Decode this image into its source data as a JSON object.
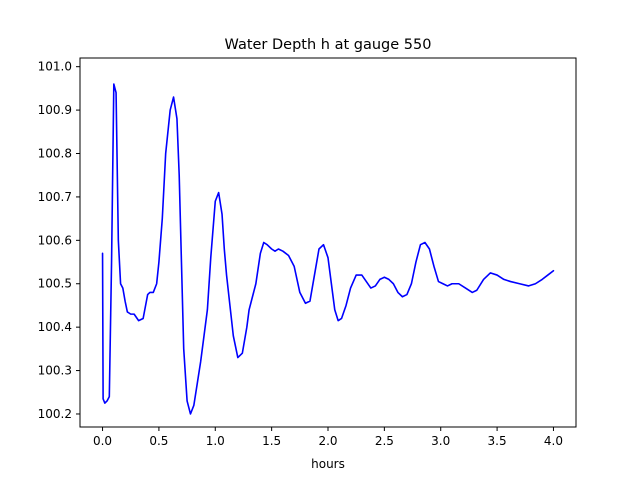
{
  "chart_data": {
    "type": "line",
    "title": "Water Depth h at gauge 550",
    "xlabel": "hours",
    "ylabel": "",
    "xlim": [
      -0.2,
      4.2
    ],
    "ylim": [
      100.17,
      101.02
    ],
    "xticks": [
      {
        "value": 0.0,
        "label": "0.0"
      },
      {
        "value": 0.5,
        "label": "0.5"
      },
      {
        "value": 1.0,
        "label": "1.0"
      },
      {
        "value": 1.5,
        "label": "1.5"
      },
      {
        "value": 2.0,
        "label": "2.0"
      },
      {
        "value": 2.5,
        "label": "2.5"
      },
      {
        "value": 3.0,
        "label": "3.0"
      },
      {
        "value": 3.5,
        "label": "3.5"
      },
      {
        "value": 4.0,
        "label": "4.0"
      }
    ],
    "yticks": [
      {
        "value": 100.2,
        "label": "100.2"
      },
      {
        "value": 100.3,
        "label": "100.3"
      },
      {
        "value": 100.4,
        "label": "100.4"
      },
      {
        "value": 100.5,
        "label": "100.5"
      },
      {
        "value": 100.6,
        "label": "100.6"
      },
      {
        "value": 100.7,
        "label": "100.7"
      },
      {
        "value": 100.8,
        "label": "100.8"
      },
      {
        "value": 100.9,
        "label": "100.9"
      },
      {
        "value": 101.0,
        "label": "101.0"
      }
    ],
    "grid": false,
    "line_color": "#0000ff",
    "series": [
      {
        "x": [
          0.0,
          0.005,
          0.02,
          0.04,
          0.06,
          0.08,
          0.1,
          0.12,
          0.14,
          0.16,
          0.18,
          0.2,
          0.22,
          0.25,
          0.28,
          0.32,
          0.36,
          0.4,
          0.42,
          0.45,
          0.48,
          0.5,
          0.53,
          0.56,
          0.6,
          0.63,
          0.66,
          0.68,
          0.7,
          0.72,
          0.75,
          0.78,
          0.81,
          0.84,
          0.87,
          0.9,
          0.93,
          0.96,
          1.0,
          1.03,
          1.06,
          1.08,
          1.1,
          1.13,
          1.16,
          1.2,
          1.24,
          1.28,
          1.3,
          1.33,
          1.36,
          1.4,
          1.43,
          1.46,
          1.5,
          1.53,
          1.56,
          1.6,
          1.65,
          1.7,
          1.75,
          1.8,
          1.84,
          1.88,
          1.92,
          1.96,
          2.0,
          2.03,
          2.06,
          2.09,
          2.12,
          2.16,
          2.2,
          2.25,
          2.3,
          2.34,
          2.38,
          2.42,
          2.46,
          2.5,
          2.54,
          2.58,
          2.62,
          2.66,
          2.7,
          2.74,
          2.78,
          2.82,
          2.86,
          2.9,
          2.94,
          2.98,
          3.02,
          3.06,
          3.1,
          3.16,
          3.22,
          3.28,
          3.32,
          3.38,
          3.44,
          3.5,
          3.56,
          3.62,
          3.7,
          3.78,
          3.84,
          3.9,
          3.95,
          4.0
        ],
        "y": [
          100.57,
          100.235,
          100.225,
          100.23,
          100.24,
          100.55,
          100.96,
          100.94,
          100.6,
          100.5,
          100.49,
          100.46,
          100.435,
          100.43,
          100.43,
          100.415,
          100.42,
          100.475,
          100.48,
          100.48,
          100.5,
          100.55,
          100.65,
          100.8,
          100.9,
          100.93,
          100.88,
          100.75,
          100.55,
          100.35,
          100.23,
          100.2,
          100.22,
          100.27,
          100.32,
          100.38,
          100.44,
          100.56,
          100.69,
          100.71,
          100.66,
          100.58,
          100.52,
          100.45,
          100.38,
          100.33,
          100.34,
          100.4,
          100.44,
          100.47,
          100.5,
          100.57,
          100.595,
          100.59,
          100.58,
          100.575,
          100.58,
          100.575,
          100.565,
          100.54,
          100.48,
          100.455,
          100.46,
          100.52,
          100.58,
          100.59,
          100.56,
          100.5,
          100.44,
          100.415,
          100.42,
          100.45,
          100.49,
          100.52,
          100.52,
          100.505,
          100.49,
          100.495,
          100.51,
          100.515,
          100.51,
          100.5,
          100.48,
          100.47,
          100.475,
          100.5,
          100.55,
          100.59,
          100.595,
          100.58,
          100.54,
          100.505,
          100.5,
          100.495,
          100.5,
          100.5,
          100.49,
          100.48,
          100.485,
          100.51,
          100.525,
          100.52,
          100.51,
          100.505,
          100.5,
          100.495,
          100.5,
          100.51,
          100.52,
          100.53
        ]
      }
    ]
  }
}
